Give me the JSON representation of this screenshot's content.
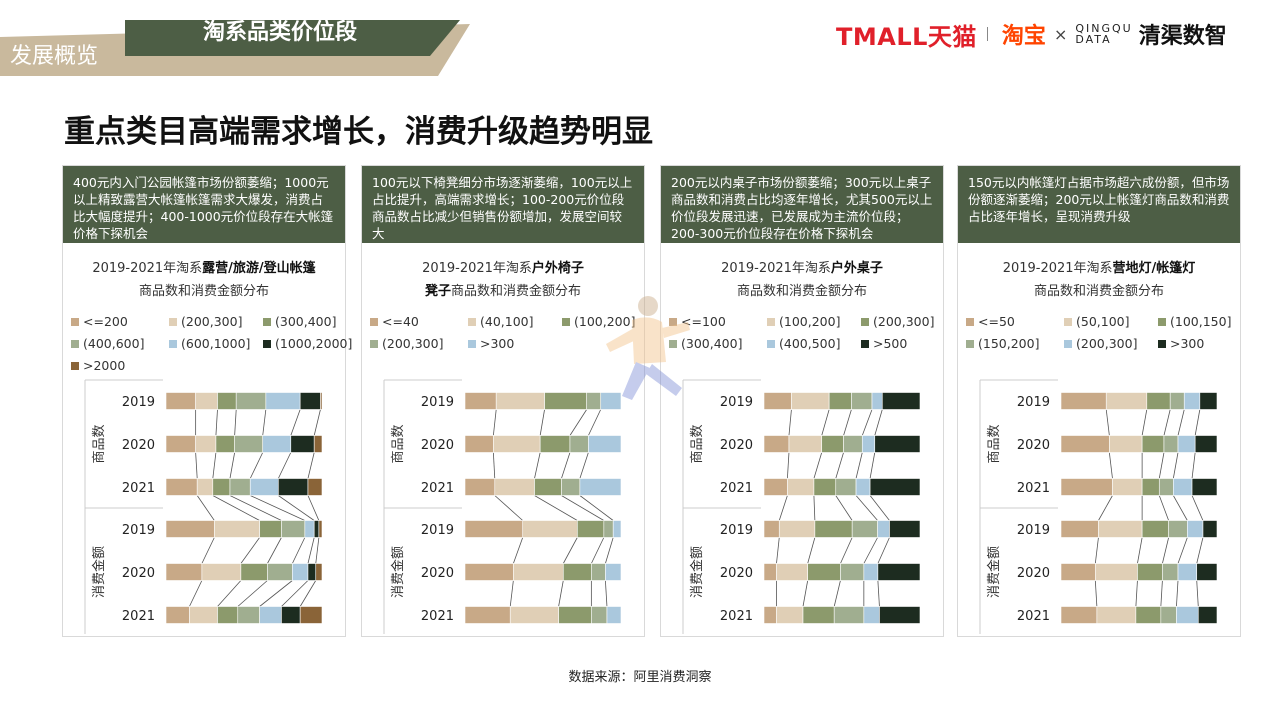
{
  "header": {
    "section_label": "发展概览",
    "tab_title": "淘系品类价位段",
    "logos": {
      "tmall": "TMALL天猫",
      "taobao": "淘宝",
      "times": "×",
      "qingqu_line1": "QINGQU",
      "qingqu_line2": "DATA",
      "qingqu_name": "清渠数智"
    }
  },
  "headline": "重点类目高端需求增长，消费升级趋势明显",
  "source": "数据来源：阿里消费洞察",
  "row_labels": {
    "years": [
      "2019",
      "2020",
      "2021"
    ],
    "group_count": "商品数",
    "group_amount": "消费金额"
  },
  "colors": [
    "#c8a987",
    "#e0cfb6",
    "#8c9a6c",
    "#a0ae90",
    "#aac8dd",
    "#1d2c20",
    "#8a6438"
  ],
  "panels": [
    {
      "description": "400元内入门公园帐篷市场份额萎缩；1000元以上精致露营大帐篷帐篷需求大爆发，消费占比大幅度提升；400-1000元价位段存在大帐篷价格下探机会",
      "title_line1_prefix": "2019-2021年淘系",
      "title_line1_bold": "露营/旅游/登山帐篷",
      "title_line2_bold": "",
      "title_line2_rest": "商品数和消费金额分布"
    },
    {
      "description": "100元以下椅凳细分市场逐渐萎缩，100元以上占比提升，高端需求增长；100-200元价位段商品数占比减少但销售份额增加，发展空间较大",
      "title_line1_prefix": "2019-2021年淘系",
      "title_line1_bold": "户外椅子",
      "title_line2_bold": "凳子",
      "title_line2_rest": "商品数和消费金额分布"
    },
    {
      "description": "200元以内桌子市场份额萎缩；300元以上桌子商品数和消费占比均逐年增长，尤其500元以上价位段发展迅速，已发展成为主流价位段；200-300元价位段存在价格下探机会",
      "title_line1_prefix": "2019-2021年淘系",
      "title_line1_bold": "户外桌子",
      "title_line2_bold": "",
      "title_line2_rest": "商品数和消费金额分布"
    },
    {
      "description": "150元以内帐篷灯占据市场超六成份额，但市场份额逐渐萎缩；200元以上帐篷灯商品数和消费占比逐年增长，呈现消费升级",
      "title_line1_prefix": "2019-2021年淘系",
      "title_line1_bold": "营地灯/帐篷灯",
      "title_line2_bold": "",
      "title_line2_rest": "商品数和消费金额分布"
    }
  ],
  "chart_data": [
    {
      "type": "bar",
      "stacked": "100%",
      "orientation": "horizontal",
      "categories": [
        "商品数 2019",
        "商品数 2020",
        "商品数 2021",
        "消费金额 2019",
        "消费金额 2020",
        "消费金额 2021"
      ],
      "series": [
        {
          "name": "<=200",
          "values": [
            19,
            19,
            20,
            31,
            23,
            15
          ]
        },
        {
          "name": "(200,300]",
          "values": [
            14,
            13,
            10,
            29,
            25,
            18
          ]
        },
        {
          "name": "(300,400]",
          "values": [
            12,
            12,
            11,
            14,
            17,
            13
          ]
        },
        {
          "name": "(400,600]",
          "values": [
            19,
            18,
            13,
            15,
            16,
            14
          ]
        },
        {
          "name": "(600,1000]",
          "values": [
            22,
            18,
            18,
            6,
            10,
            14
          ]
        },
        {
          "name": "(1000,2000]",
          "values": [
            13,
            15,
            19,
            3,
            5,
            12
          ]
        },
        {
          "name": ">2000",
          "values": [
            1,
            5,
            9,
            2,
            4,
            14
          ]
        }
      ]
    },
    {
      "type": "bar",
      "stacked": "100%",
      "orientation": "horizontal",
      "categories": [
        "商品数 2019",
        "商品数 2020",
        "商品数 2021",
        "消费金额 2019",
        "消费金额 2020",
        "消费金额 2021"
      ],
      "series": [
        {
          "name": "<=40",
          "values": [
            20,
            20,
            21,
            37,
            31,
            29
          ]
        },
        {
          "name": "(40,100]",
          "values": [
            31,
            33,
            28,
            35,
            32,
            31
          ]
        },
        {
          "name": "(100,200]",
          "values": [
            27,
            21,
            19,
            17,
            18,
            21
          ]
        },
        {
          "name": "(200,300]",
          "values": [
            9,
            13,
            13,
            6,
            9,
            10
          ]
        },
        {
          "name": ">300",
          "values": [
            13,
            23,
            29,
            5,
            10,
            9
          ]
        }
      ]
    },
    {
      "type": "bar",
      "stacked": "100%",
      "orientation": "horizontal",
      "categories": [
        "商品数 2019",
        "商品数 2020",
        "商品数 2021",
        "消费金额 2019",
        "消费金额 2020",
        "消费金额 2021"
      ],
      "series": [
        {
          "name": "<=100",
          "values": [
            16,
            16,
            15,
            9,
            8,
            8
          ]
        },
        {
          "name": "(100,200]",
          "values": [
            22,
            21,
            17,
            21,
            20,
            17
          ]
        },
        {
          "name": "(200,300]",
          "values": [
            13,
            14,
            14,
            22,
            21,
            20
          ]
        },
        {
          "name": "(300,400]",
          "values": [
            12,
            12,
            13,
            15,
            15,
            19
          ]
        },
        {
          "name": "(400,500]",
          "values": [
            6,
            8,
            9,
            7,
            9,
            10
          ]
        },
        {
          "name": ">500",
          "values": [
            22,
            29,
            32,
            18,
            27,
            26
          ]
        }
      ]
    },
    {
      "type": "bar",
      "stacked": "100%",
      "orientation": "horizontal",
      "categories": [
        "商品数 2019",
        "商品数 2020",
        "商品数 2021",
        "消费金额 2019",
        "消费金额 2020",
        "消费金额 2021"
      ],
      "series": [
        {
          "name": "<=50",
          "values": [
            29,
            31,
            33,
            24,
            22,
            23
          ]
        },
        {
          "name": "(50,100]",
          "values": [
            26,
            21,
            19,
            28,
            27,
            25
          ]
        },
        {
          "name": "(100,150]",
          "values": [
            15,
            14,
            11,
            17,
            16,
            16
          ]
        },
        {
          "name": "(150,200]",
          "values": [
            9,
            9,
            9,
            12,
            10,
            10
          ]
        },
        {
          "name": "(200,300]",
          "values": [
            10,
            11,
            12,
            10,
            12,
            14
          ]
        },
        {
          "name": ">300",
          "values": [
            11,
            14,
            16,
            9,
            13,
            12
          ]
        }
      ]
    }
  ]
}
